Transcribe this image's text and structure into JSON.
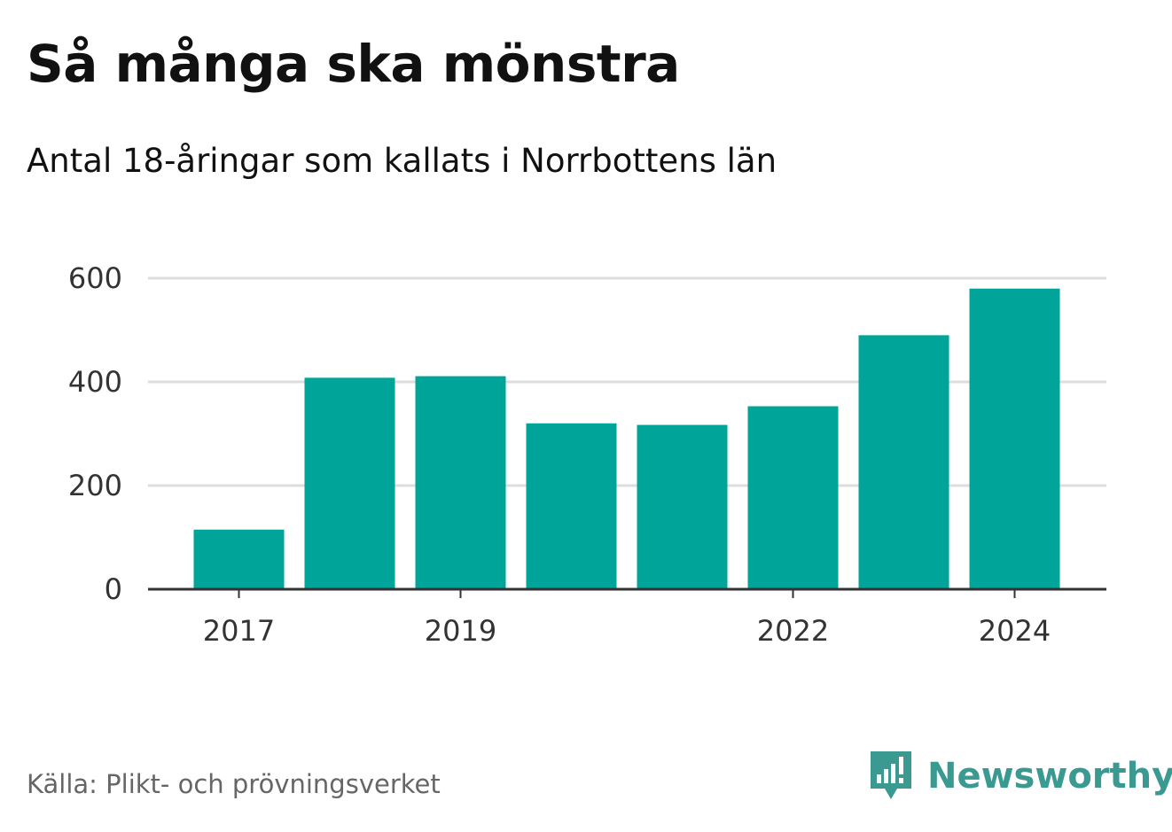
{
  "colors": {
    "bar": "#00a499",
    "grid": "#dddddd",
    "axis": "#333333",
    "brand": "#3a9a92"
  },
  "chart_data": {
    "type": "bar",
    "title": "Så många ska mönstra",
    "subtitle": "Antal 18-åringar som kallats i Norrbottens län",
    "categories": [
      "2017",
      "2018",
      "2019",
      "2020",
      "2021",
      "2022",
      "2023",
      "2024"
    ],
    "x_tick_labels": [
      "2017",
      "2019",
      "2022",
      "2024"
    ],
    "values": [
      115,
      408,
      411,
      320,
      317,
      353,
      490,
      580
    ],
    "y_ticks": [
      0,
      200,
      400,
      600
    ],
    "ylim": [
      0,
      600
    ],
    "grid": true,
    "xlabel": "",
    "ylabel": ""
  },
  "footer": {
    "source": "Källa: Plikt- och prövningsverket",
    "brand_name": "Newsworthy",
    "brand_icon": "newsworthy-logo-icon"
  }
}
